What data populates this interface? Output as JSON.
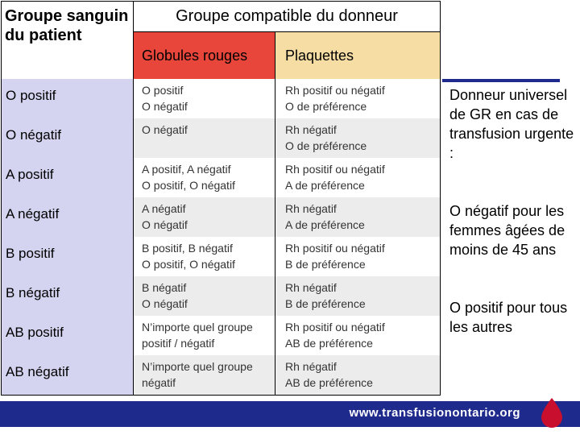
{
  "header": {
    "patient_label": "Groupe sanguin du patient",
    "group_label": "Groupe compatible du donneur",
    "red_cells_label": "Globules rouges",
    "platelets_label": "Plaquettes"
  },
  "rows": [
    {
      "patient": "O positif",
      "red_cells": [
        "O positif",
        "O négatif"
      ],
      "platelets": [
        "Rh positif ou négatif",
        "O de préférence"
      ]
    },
    {
      "patient": "O négatif",
      "red_cells": [
        "O négatif"
      ],
      "platelets": [
        "Rh négatif",
        "O de préférence"
      ]
    },
    {
      "patient": "A positif",
      "red_cells": [
        "A positif, A négatif",
        "O positif, O négatif"
      ],
      "platelets": [
        "Rh positif ou négatif",
        "A de préférence"
      ]
    },
    {
      "patient": "A négatif",
      "red_cells": [
        "A négatif",
        "O négatif"
      ],
      "platelets": [
        "Rh négatif",
        "A de préférence"
      ]
    },
    {
      "patient": "B positif",
      "red_cells": [
        "B positif, B négatif",
        "O positif, O négatif"
      ],
      "platelets": [
        "Rh positif ou négatif",
        "B de préférence"
      ]
    },
    {
      "patient": "B négatif",
      "red_cells": [
        "B négatif",
        "O négatif"
      ],
      "platelets": [
        "Rh négatif",
        "B de préférence"
      ]
    },
    {
      "patient": "AB positif",
      "red_cells": [
        "N’importe quel groupe",
        "positif / négatif"
      ],
      "platelets": [
        "Rh positif ou négatif",
        "AB de préférence"
      ]
    },
    {
      "patient": "AB négatif",
      "red_cells": [
        "N’importe quel groupe",
        "négatif"
      ],
      "platelets": [
        "Rh négatif",
        "AB de préférence"
      ]
    }
  ],
  "side_notes": {
    "universal": "Donneur universel de GR en cas de transfusion urgente :",
    "women": "O négatif pour les femmes âgées de moins de 45 ans",
    "others": "O positif pour tous les autres"
  },
  "footer": {
    "url": "www.transfusionontario.org",
    "accent_color": "#1e2a8c",
    "drop_color": "#c8102e"
  }
}
